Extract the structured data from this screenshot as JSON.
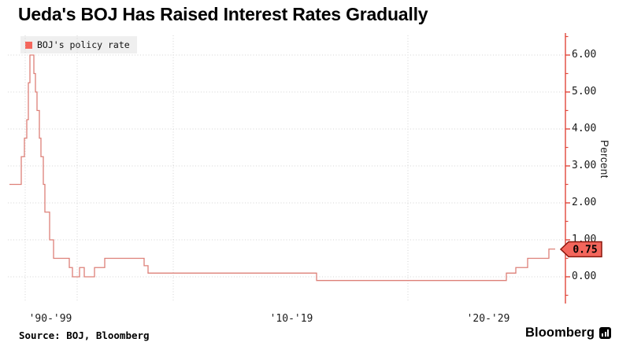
{
  "title": "Ueda's BOJ Has Raised Interest Rates Gradually",
  "source": "Source: BOJ, Bloomberg",
  "brand": "Bloomberg",
  "colors": {
    "accent_red": "#f4665c",
    "line": "#dd8078",
    "axis_red": "#e0483c",
    "callout_border": "#8a160c",
    "grid": "#d4d4d4",
    "legend_bg": "#efefef",
    "text": "#1a1a1a"
  },
  "chart_data": {
    "type": "line",
    "subtype": "step",
    "title": "Ueda's BOJ Has Raised Interest Rates Gradually",
    "legend_label": "BOJ's policy rate",
    "legend_position": "top-left",
    "ylabel": "Percent",
    "ylim": [
      -0.6,
      6.6
    ],
    "grid": "dotted",
    "y_axis": {
      "side": "right",
      "tick_labels": [
        "6.00",
        "5.00",
        "4.00",
        "3.00",
        "2.00",
        "1.00",
        "0.00"
      ],
      "tick_values": [
        6,
        5,
        4,
        3,
        2,
        1,
        0
      ],
      "minor_tick_values": [
        6.5,
        5.5,
        4.5,
        3.5,
        2.5,
        1.5,
        0.5,
        -0.5
      ]
    },
    "x_axis": {
      "labels": [
        "'90-'99",
        "'10-'19",
        "'20-'29"
      ],
      "note": "decades; vertical gridlines mark 1990, 2000, 2010, 2020"
    },
    "current_value": 0.75,
    "current_value_label": "0.75",
    "series": [
      {
        "name": "BOJ's policy rate",
        "unit": "percent",
        "points_format": "[x_position_px_along_time_axis, rate_percent] — rate holds until next breakpoint",
        "points": [
          [
            12,
            2.5
          ],
          [
            27,
            3.25
          ],
          [
            31,
            3.75
          ],
          [
            34,
            4.25
          ],
          [
            36,
            5.25
          ],
          [
            38,
            6.0
          ],
          [
            43,
            5.5
          ],
          [
            45,
            5.0
          ],
          [
            47,
            4.5
          ],
          [
            50,
            3.75
          ],
          [
            52,
            3.25
          ],
          [
            55,
            2.5
          ],
          [
            57,
            1.75
          ],
          [
            63,
            1.0
          ],
          [
            68,
            0.5
          ],
          [
            88,
            0.25
          ],
          [
            92,
            0.0
          ],
          [
            101,
            0.25
          ],
          [
            107,
            0.0
          ],
          [
            120,
            0.25
          ],
          [
            133,
            0.5
          ],
          [
            183,
            0.3
          ],
          [
            188,
            0.1
          ],
          [
            402,
            -0.1
          ],
          [
            643,
            0.1
          ],
          [
            655,
            0.25
          ],
          [
            670,
            0.5
          ],
          [
            697,
            0.75
          ]
        ]
      }
    ]
  }
}
